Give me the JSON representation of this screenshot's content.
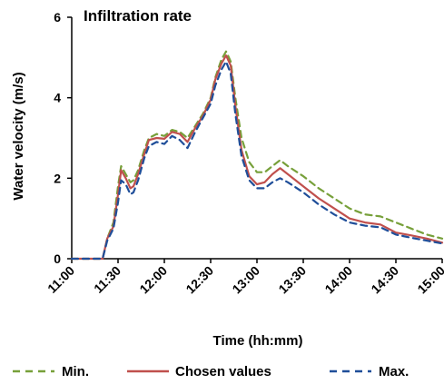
{
  "chart_data": {
    "type": "line",
    "title": "Infiltration rate",
    "xlabel": "Time (hh:mm)",
    "ylabel": "Water velocity (m/s)",
    "x_ticks": [
      "11:00",
      "11:30",
      "12:00",
      "12:30",
      "13:00",
      "13:30",
      "14:00",
      "14:30",
      "15:00"
    ],
    "y_ticks": [
      0,
      2,
      4,
      6
    ],
    "xlim": [
      "11:00",
      "15:00"
    ],
    "ylim": [
      0,
      6
    ],
    "grid": false,
    "legend_position": "bottom",
    "series": [
      {
        "name": "Min.",
        "color": "#77a03a",
        "dash": "dashed",
        "points": [
          [
            "11:00",
            0
          ],
          [
            "11:20",
            0
          ],
          [
            "11:23",
            0.5
          ],
          [
            "11:27",
            0.9
          ],
          [
            "11:30",
            1.8
          ],
          [
            "11:32",
            2.3
          ],
          [
            "11:35",
            2.1
          ],
          [
            "11:38",
            1.9
          ],
          [
            "11:40",
            1.95
          ],
          [
            "11:43",
            2.2
          ],
          [
            "11:47",
            2.7
          ],
          [
            "11:50",
            3.0
          ],
          [
            "11:55",
            3.1
          ],
          [
            "12:00",
            3.05
          ],
          [
            "12:05",
            3.2
          ],
          [
            "12:10",
            3.15
          ],
          [
            "12:15",
            3.0
          ],
          [
            "12:20",
            3.3
          ],
          [
            "12:25",
            3.6
          ],
          [
            "12:30",
            4.0
          ],
          [
            "12:33",
            4.5
          ],
          [
            "12:37",
            4.95
          ],
          [
            "12:40",
            5.15
          ],
          [
            "12:43",
            4.9
          ],
          [
            "12:46",
            4.0
          ],
          [
            "12:50",
            3.0
          ],
          [
            "12:55",
            2.4
          ],
          [
            "13:00",
            2.15
          ],
          [
            "13:05",
            2.15
          ],
          [
            "13:10",
            2.3
          ],
          [
            "13:15",
            2.45
          ],
          [
            "13:20",
            2.3
          ],
          [
            "13:30",
            2.05
          ],
          [
            "13:40",
            1.75
          ],
          [
            "13:50",
            1.5
          ],
          [
            "14:00",
            1.25
          ],
          [
            "14:10",
            1.1
          ],
          [
            "14:20",
            1.05
          ],
          [
            "14:30",
            0.9
          ],
          [
            "14:40",
            0.75
          ],
          [
            "14:50",
            0.6
          ],
          [
            "15:00",
            0.5
          ]
        ]
      },
      {
        "name": "Chosen values",
        "color": "#c0504d",
        "dash": "solid",
        "points": [
          [
            "11:00",
            0
          ],
          [
            "11:20",
            0
          ],
          [
            "11:23",
            0.5
          ],
          [
            "11:27",
            0.8
          ],
          [
            "11:30",
            1.6
          ],
          [
            "11:32",
            2.2
          ],
          [
            "11:35",
            2.0
          ],
          [
            "11:38",
            1.75
          ],
          [
            "11:40",
            1.8
          ],
          [
            "11:43",
            2.1
          ],
          [
            "11:47",
            2.6
          ],
          [
            "11:50",
            2.95
          ],
          [
            "11:55",
            3.0
          ],
          [
            "12:00",
            2.98
          ],
          [
            "12:05",
            3.15
          ],
          [
            "12:10",
            3.1
          ],
          [
            "12:15",
            2.9
          ],
          [
            "12:20",
            3.25
          ],
          [
            "12:25",
            3.55
          ],
          [
            "12:30",
            3.95
          ],
          [
            "12:33",
            4.45
          ],
          [
            "12:37",
            4.85
          ],
          [
            "12:40",
            5.05
          ],
          [
            "12:43",
            4.8
          ],
          [
            "12:46",
            3.8
          ],
          [
            "12:50",
            2.7
          ],
          [
            "12:55",
            2.05
          ],
          [
            "13:00",
            1.85
          ],
          [
            "13:05",
            1.9
          ],
          [
            "13:10",
            2.1
          ],
          [
            "13:15",
            2.25
          ],
          [
            "13:20",
            2.1
          ],
          [
            "13:30",
            1.8
          ],
          [
            "13:40",
            1.5
          ],
          [
            "13:50",
            1.25
          ],
          [
            "14:00",
            1.0
          ],
          [
            "14:10",
            0.9
          ],
          [
            "14:20",
            0.85
          ],
          [
            "14:30",
            0.65
          ],
          [
            "14:40",
            0.58
          ],
          [
            "14:50",
            0.5
          ],
          [
            "15:00",
            0.4
          ]
        ]
      },
      {
        "name": "Max.",
        "color": "#1f4e99",
        "dash": "dashed",
        "points": [
          [
            "11:00",
            0
          ],
          [
            "11:20",
            0
          ],
          [
            "11:23",
            0.45
          ],
          [
            "11:27",
            0.75
          ],
          [
            "11:30",
            1.4
          ],
          [
            "11:32",
            1.95
          ],
          [
            "11:35",
            1.85
          ],
          [
            "11:38",
            1.6
          ],
          [
            "11:40",
            1.65
          ],
          [
            "11:43",
            1.95
          ],
          [
            "11:47",
            2.5
          ],
          [
            "11:50",
            2.8
          ],
          [
            "11:55",
            2.9
          ],
          [
            "12:00",
            2.85
          ],
          [
            "12:05",
            3.05
          ],
          [
            "12:10",
            2.95
          ],
          [
            "12:15",
            2.75
          ],
          [
            "12:20",
            3.15
          ],
          [
            "12:25",
            3.5
          ],
          [
            "12:30",
            3.85
          ],
          [
            "12:33",
            4.3
          ],
          [
            "12:37",
            4.7
          ],
          [
            "12:40",
            4.9
          ],
          [
            "12:43",
            4.6
          ],
          [
            "12:46",
            3.6
          ],
          [
            "12:50",
            2.55
          ],
          [
            "12:55",
            1.95
          ],
          [
            "13:00",
            1.75
          ],
          [
            "13:05",
            1.75
          ],
          [
            "13:10",
            1.9
          ],
          [
            "13:15",
            2.0
          ],
          [
            "13:20",
            1.9
          ],
          [
            "13:30",
            1.65
          ],
          [
            "13:40",
            1.35
          ],
          [
            "13:50",
            1.1
          ],
          [
            "14:00",
            0.9
          ],
          [
            "14:10",
            0.82
          ],
          [
            "14:20",
            0.78
          ],
          [
            "14:30",
            0.6
          ],
          [
            "14:40",
            0.52
          ],
          [
            "14:50",
            0.45
          ],
          [
            "15:00",
            0.38
          ]
        ]
      }
    ]
  }
}
